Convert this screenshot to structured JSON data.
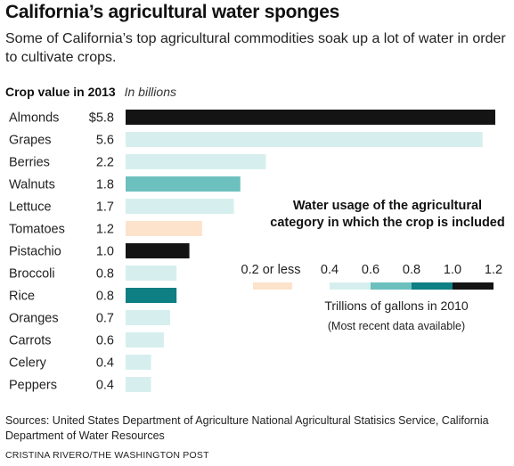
{
  "header": {
    "title": "California’s agricultural water sponges",
    "subtitle": "Some of California’s top agricultural commodities soak up a lot of water in order to cultivate crops."
  },
  "value_heading": {
    "label": "Crop value in 2013",
    "unit": "In billions"
  },
  "legend": {
    "title": "Water usage of the agricultural category in which the crop is included",
    "unit_label": "Trillions of gallons in 2010",
    "note": "(Most recent data available)",
    "low_label": "0.2 or less",
    "scale_labels": [
      "0.4",
      "0.6",
      "0.8",
      "1.0",
      "1.2"
    ],
    "colors": {
      "low": "#fde3cc",
      "0.4-0.6": "#d6efee",
      "0.6-0.8": "#6cc0be",
      "0.8-1.0": "#0e7f83",
      "1.0-1.2": "#141414"
    }
  },
  "chart_data": {
    "type": "bar",
    "orientation": "horizontal",
    "title": "Crop value in 2013",
    "value_unit": "In billions",
    "categories": [
      "Almonds",
      "Grapes",
      "Berries",
      "Walnuts",
      "Lettuce",
      "Tomatoes",
      "Pistachio",
      "Broccoli",
      "Rice",
      "Oranges",
      "Carrots",
      "Celery",
      "Peppers"
    ],
    "values": [
      5.8,
      5.6,
      2.2,
      1.8,
      1.7,
      1.2,
      1.0,
      0.8,
      0.8,
      0.7,
      0.6,
      0.4,
      0.4
    ],
    "value_labels": [
      "$5.8",
      "5.6",
      "2.2",
      "1.8",
      "1.7",
      "1.2",
      "1.0",
      "0.8",
      "0.8",
      "0.7",
      "0.6",
      "0.4",
      "0.4"
    ],
    "water_usage_category": [
      "1.0-1.2",
      "0.4-0.6",
      "0.4-0.6",
      "0.6-0.8",
      "0.4-0.6",
      "low",
      "1.0-1.2",
      "0.4-0.6",
      "0.8-1.0",
      "0.4-0.6",
      "0.4-0.6",
      "0.4-0.6",
      "0.4-0.6"
    ],
    "xlim": [
      0,
      5.8
    ],
    "grid": false
  },
  "footer": {
    "sources": "Sources: United States Department of Agriculture National Agricultural Statisics Service, California Department of Water Resources",
    "credit": "CRISTINA RIVERO/THE WASHINGTON POST"
  }
}
